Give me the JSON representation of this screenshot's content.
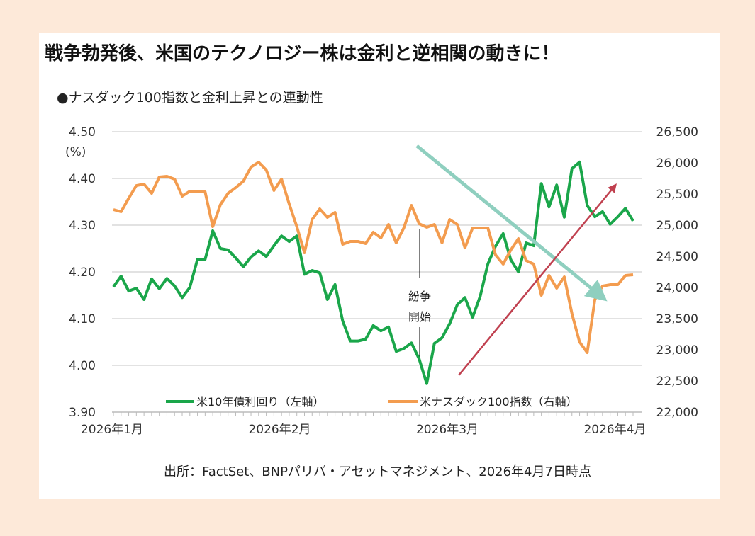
{
  "title": "戦争勃発後、米国のテクノロジー株は金利と逆相関の動きに！",
  "subtitle": "●ナスダック100指数と金利上昇との連動性",
  "source": "出所：FactSet、BNPパリバ・アセットマネジメント、2026年4月7日時点",
  "colors": {
    "background": "#fde9d9",
    "yield": "#1aa64a",
    "nasdaq": "#f39c4f",
    "down_arrow": "#8fcfbf",
    "up_arrow": "#c0404f",
    "grid": "#d9d9d9"
  },
  "chart_data": {
    "type": "line",
    "title": "",
    "y_left": {
      "unit_label": "(%)",
      "range": [
        3.9,
        4.5
      ],
      "ticks": [
        "3.90",
        "4.00",
        "4.10",
        "4.20",
        "4.30",
        "4.40",
        "4.50"
      ]
    },
    "y_right": {
      "range": [
        22000,
        26500
      ],
      "ticks": [
        "22,000",
        "22,500",
        "23,000",
        "23,500",
        "24,000",
        "24,500",
        "25,000",
        "25,500",
        "26,000",
        "26,500"
      ]
    },
    "x_tick_labels": [
      "2026年1月",
      "2026年2月",
      "2026年3月",
      "2026年4月"
    ],
    "grid": true,
    "legend_placement": "bottom",
    "annotation": {
      "text_line1": "紛争",
      "text_line2": "開始"
    },
    "series": [
      {
        "name": "米10年債利回り（左軸）",
        "axis": "left",
        "values": [
          4.168,
          4.191,
          4.159,
          4.165,
          4.141,
          4.185,
          4.164,
          4.186,
          4.17,
          4.145,
          4.167,
          4.227,
          4.227,
          4.288,
          4.25,
          4.247,
          4.23,
          4.211,
          4.232,
          4.245,
          4.233,
          4.256,
          4.277,
          4.265,
          4.277,
          4.195,
          4.203,
          4.198,
          4.141,
          4.173,
          4.095,
          4.052,
          4.052,
          4.056,
          4.085,
          4.074,
          4.082,
          4.03,
          4.036,
          4.048,
          4.014,
          3.961,
          4.047,
          4.059,
          4.089,
          4.13,
          4.145,
          4.103,
          4.148,
          4.217,
          4.255,
          4.282,
          4.226,
          4.2,
          4.262,
          4.256,
          4.389,
          4.339,
          4.386,
          4.317,
          4.421,
          4.435,
          4.342,
          4.318,
          4.329,
          4.302,
          4.318,
          4.336,
          4.309
        ]
      },
      {
        "name": "米ナスダック100指数（右軸）",
        "axis": "right",
        "values": [
          25250,
          25216,
          25432,
          25636,
          25659,
          25511,
          25773,
          25784,
          25739,
          25466,
          25545,
          25534,
          25534,
          24977,
          25330,
          25511,
          25602,
          25705,
          25932,
          26011,
          25886,
          25557,
          25739,
          25341,
          24977,
          24557,
          25091,
          25261,
          25125,
          25205,
          24693,
          24739,
          24739,
          24705,
          24886,
          24795,
          25011,
          24716,
          24955,
          25318,
          25023,
          24966,
          25011,
          24716,
          25091,
          25011,
          24636,
          24955,
          24955,
          24955,
          24523,
          24375,
          24602,
          24784,
          24432,
          24375,
          23875,
          24193,
          23989,
          24170,
          23580,
          23125,
          22955,
          23807,
          24023,
          24045,
          24045,
          24193,
          24205
        ]
      }
    ]
  }
}
